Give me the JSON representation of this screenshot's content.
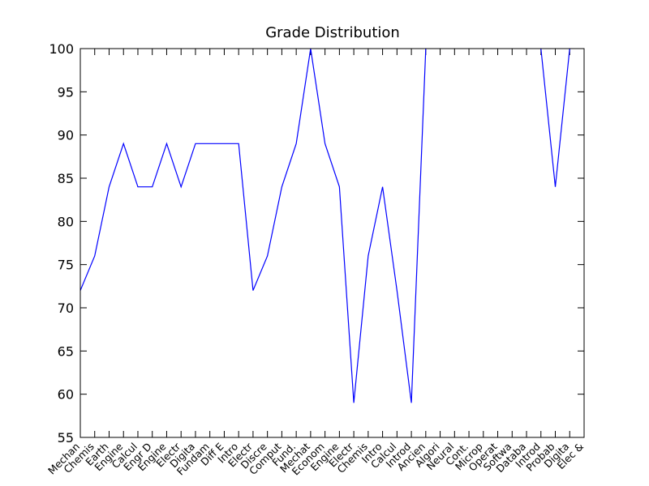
{
  "chart_data": {
    "type": "line",
    "title": "Grade Distribution",
    "categories": [
      "Mechan",
      "Chemis",
      "Earth",
      "Engine",
      "Calcul",
      "Engr D",
      "Engine",
      "Electr",
      "Digita",
      "Fundam",
      "Diff E",
      "Intro",
      "Electr",
      "Discre",
      "Comput",
      "Fund.",
      "Mechat",
      "Econom",
      "Engine",
      "Electr",
      "Chemis",
      "Intro",
      "Calcul",
      "Introd",
      "Ancien",
      "Algori",
      "Neural",
      "Cont.",
      "Microp",
      "Operat",
      "Softwa",
      "Databa",
      "Introd",
      "Probab",
      "Digita",
      "Elec &"
    ],
    "values": [
      72,
      76,
      84,
      89,
      84,
      84,
      89,
      84,
      89,
      89,
      89,
      89,
      72,
      76,
      84,
      89,
      100,
      89,
      84,
      59,
      76,
      84,
      72,
      59,
      100,
      null,
      null,
      null,
      null,
      null,
      null,
      null,
      100,
      84,
      100,
      null
    ],
    "color": "#0000ff",
    "ylim": [
      55,
      100
    ],
    "yticks": [
      55,
      60,
      65,
      70,
      75,
      80,
      85,
      90,
      95,
      100
    ],
    "grid": false
  }
}
